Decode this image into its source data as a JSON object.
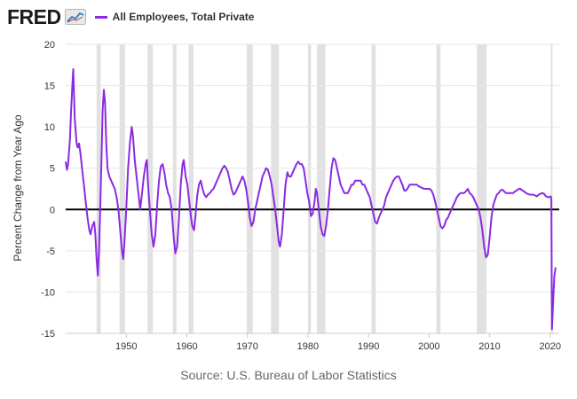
{
  "header": {
    "logo_text": "FRED",
    "logo_icon": "line-chart-icon",
    "legend_label": "All Employees, Total Private",
    "series_color": "#8a2be2"
  },
  "source_text": "Source: U.S. Bureau of Labor Statistics",
  "chart_data": {
    "type": "line",
    "title": "",
    "xlabel": "",
    "ylabel": "Percent Change from Year Ago",
    "xlim": [
      1940.0,
      2021.5
    ],
    "ylim": [
      -15,
      20
    ],
    "yticks": [
      -15,
      -10,
      -5,
      0,
      5,
      10,
      15,
      20
    ],
    "xticks": [
      1950,
      1960,
      1970,
      1980,
      1990,
      2000,
      2010,
      2020
    ],
    "grid": "horizontal",
    "zero_line": true,
    "recessions": [
      [
        1945.1,
        1945.8
      ],
      [
        1948.9,
        1949.8
      ],
      [
        1953.5,
        1954.4
      ],
      [
        1957.7,
        1958.3
      ],
      [
        1960.3,
        1961.1
      ],
      [
        1969.9,
        1970.9
      ],
      [
        1973.9,
        1975.2
      ],
      [
        1980.0,
        1980.5
      ],
      [
        1981.5,
        1982.9
      ],
      [
        1990.5,
        1991.2
      ],
      [
        2001.2,
        2001.9
      ],
      [
        2007.9,
        2009.5
      ],
      [
        2020.1,
        2020.4
      ]
    ],
    "series": [
      {
        "name": "All Employees, Total Private",
        "color": "#8a2be2",
        "points": [
          [
            1940.0,
            5.8
          ],
          [
            1940.2,
            4.8
          ],
          [
            1940.4,
            5.5
          ],
          [
            1940.7,
            8.5
          ],
          [
            1940.9,
            12.0
          ],
          [
            1941.1,
            15.0
          ],
          [
            1941.25,
            17.0
          ],
          [
            1941.5,
            11.0
          ],
          [
            1941.8,
            8.0
          ],
          [
            1942.0,
            7.5
          ],
          [
            1942.2,
            8.0
          ],
          [
            1942.4,
            7.0
          ],
          [
            1942.7,
            5.0
          ],
          [
            1943.0,
            3.0
          ],
          [
            1943.3,
            1.0
          ],
          [
            1943.6,
            -1.0
          ],
          [
            1943.9,
            -2.5
          ],
          [
            1944.1,
            -3.0
          ],
          [
            1944.4,
            -2.0
          ],
          [
            1944.7,
            -1.5
          ],
          [
            1944.9,
            -3.0
          ],
          [
            1945.1,
            -6.0
          ],
          [
            1945.3,
            -8.0
          ],
          [
            1945.5,
            -5.0
          ],
          [
            1945.7,
            0.0
          ],
          [
            1945.9,
            6.0
          ],
          [
            1946.1,
            12.0
          ],
          [
            1946.3,
            14.5
          ],
          [
            1946.5,
            13.0
          ],
          [
            1946.7,
            8.0
          ],
          [
            1946.9,
            5.0
          ],
          [
            1947.2,
            4.0
          ],
          [
            1947.5,
            3.5
          ],
          [
            1947.8,
            3.0
          ],
          [
            1948.1,
            2.5
          ],
          [
            1948.4,
            1.5
          ],
          [
            1948.7,
            0.0
          ],
          [
            1949.0,
            -2.5
          ],
          [
            1949.3,
            -5.0
          ],
          [
            1949.5,
            -6.0
          ],
          [
            1949.7,
            -4.0
          ],
          [
            1950.0,
            0.0
          ],
          [
            1950.3,
            5.0
          ],
          [
            1950.6,
            8.0
          ],
          [
            1950.9,
            10.0
          ],
          [
            1951.1,
            9.0
          ],
          [
            1951.4,
            6.0
          ],
          [
            1951.7,
            4.0
          ],
          [
            1952.0,
            2.0
          ],
          [
            1952.3,
            0.0
          ],
          [
            1952.6,
            2.0
          ],
          [
            1952.9,
            4.0
          ],
          [
            1953.2,
            5.5
          ],
          [
            1953.4,
            6.0
          ],
          [
            1953.6,
            3.0
          ],
          [
            1953.9,
            0.0
          ],
          [
            1954.2,
            -3.0
          ],
          [
            1954.5,
            -4.5
          ],
          [
            1954.8,
            -3.0
          ],
          [
            1955.1,
            0.5
          ],
          [
            1955.4,
            3.5
          ],
          [
            1955.7,
            5.2
          ],
          [
            1956.0,
            5.5
          ],
          [
            1956.3,
            4.5
          ],
          [
            1956.6,
            3.0
          ],
          [
            1956.9,
            2.0
          ],
          [
            1957.2,
            1.5
          ],
          [
            1957.5,
            0.0
          ],
          [
            1957.8,
            -3.0
          ],
          [
            1958.1,
            -5.3
          ],
          [
            1958.4,
            -4.5
          ],
          [
            1958.7,
            -1.0
          ],
          [
            1959.0,
            3.0
          ],
          [
            1959.3,
            5.5
          ],
          [
            1959.5,
            6.0
          ],
          [
            1959.8,
            4.0
          ],
          [
            1960.1,
            3.0
          ],
          [
            1960.4,
            1.0
          ],
          [
            1960.7,
            -1.0
          ],
          [
            1960.9,
            -2.0
          ],
          [
            1961.2,
            -2.5
          ],
          [
            1961.4,
            -1.0
          ],
          [
            1961.7,
            1.5
          ],
          [
            1962.0,
            3.0
          ],
          [
            1962.3,
            3.5
          ],
          [
            1962.6,
            2.5
          ],
          [
            1962.9,
            1.8
          ],
          [
            1963.2,
            1.5
          ],
          [
            1963.5,
            1.8
          ],
          [
            1963.8,
            2.0
          ],
          [
            1964.1,
            2.3
          ],
          [
            1964.4,
            2.5
          ],
          [
            1964.7,
            3.0
          ],
          [
            1965.0,
            3.5
          ],
          [
            1965.3,
            4.0
          ],
          [
            1965.6,
            4.5
          ],
          [
            1965.9,
            5.0
          ],
          [
            1966.2,
            5.3
          ],
          [
            1966.5,
            5.0
          ],
          [
            1966.8,
            4.5
          ],
          [
            1967.1,
            3.5
          ],
          [
            1967.4,
            2.5
          ],
          [
            1967.7,
            1.8
          ],
          [
            1968.0,
            2.0
          ],
          [
            1968.3,
            2.5
          ],
          [
            1968.6,
            3.0
          ],
          [
            1968.9,
            3.5
          ],
          [
            1969.2,
            4.0
          ],
          [
            1969.5,
            3.5
          ],
          [
            1969.8,
            2.5
          ],
          [
            1970.1,
            1.0
          ],
          [
            1970.4,
            -1.0
          ],
          [
            1970.7,
            -2.0
          ],
          [
            1971.0,
            -1.5
          ],
          [
            1971.3,
            0.0
          ],
          [
            1971.6,
            1.0
          ],
          [
            1971.9,
            2.0
          ],
          [
            1972.2,
            3.0
          ],
          [
            1972.5,
            4.0
          ],
          [
            1972.8,
            4.5
          ],
          [
            1973.1,
            5.0
          ],
          [
            1973.4,
            4.8
          ],
          [
            1973.7,
            4.0
          ],
          [
            1974.0,
            3.0
          ],
          [
            1974.3,
            1.5
          ],
          [
            1974.6,
            0.0
          ],
          [
            1974.9,
            -2.0
          ],
          [
            1975.2,
            -4.0
          ],
          [
            1975.4,
            -4.5
          ],
          [
            1975.7,
            -3.0
          ],
          [
            1976.0,
            0.0
          ],
          [
            1976.3,
            3.0
          ],
          [
            1976.6,
            4.5
          ],
          [
            1976.9,
            4.0
          ],
          [
            1977.2,
            4.0
          ],
          [
            1977.5,
            4.5
          ],
          [
            1977.8,
            5.0
          ],
          [
            1978.1,
            5.5
          ],
          [
            1978.4,
            5.8
          ],
          [
            1978.7,
            5.5
          ],
          [
            1979.0,
            5.5
          ],
          [
            1979.3,
            5.0
          ],
          [
            1979.6,
            3.5
          ],
          [
            1979.9,
            2.0
          ],
          [
            1980.2,
            1.0
          ],
          [
            1980.5,
            -0.8
          ],
          [
            1980.8,
            -0.5
          ],
          [
            1981.1,
            1.0
          ],
          [
            1981.3,
            2.5
          ],
          [
            1981.5,
            2.0
          ],
          [
            1981.8,
            0.0
          ],
          [
            1982.1,
            -2.0
          ],
          [
            1982.4,
            -3.0
          ],
          [
            1982.7,
            -3.2
          ],
          [
            1983.0,
            -2.0
          ],
          [
            1983.3,
            0.0
          ],
          [
            1983.6,
            2.5
          ],
          [
            1983.9,
            5.0
          ],
          [
            1984.2,
            6.2
          ],
          [
            1984.5,
            6.0
          ],
          [
            1984.8,
            5.0
          ],
          [
            1985.1,
            4.0
          ],
          [
            1985.4,
            3.0
          ],
          [
            1985.7,
            2.5
          ],
          [
            1986.0,
            2.0
          ],
          [
            1986.3,
            2.0
          ],
          [
            1986.6,
            2.0
          ],
          [
            1986.9,
            2.5
          ],
          [
            1987.2,
            3.0
          ],
          [
            1987.5,
            3.0
          ],
          [
            1987.8,
            3.5
          ],
          [
            1988.1,
            3.5
          ],
          [
            1988.4,
            3.5
          ],
          [
            1988.7,
            3.5
          ],
          [
            1989.0,
            3.0
          ],
          [
            1989.3,
            3.0
          ],
          [
            1989.6,
            2.5
          ],
          [
            1989.9,
            2.0
          ],
          [
            1990.2,
            1.5
          ],
          [
            1990.5,
            0.5
          ],
          [
            1990.8,
            -0.5
          ],
          [
            1991.1,
            -1.5
          ],
          [
            1991.4,
            -1.7
          ],
          [
            1991.7,
            -1.0
          ],
          [
            1992.0,
            -0.5
          ],
          [
            1992.3,
            0.0
          ],
          [
            1992.6,
            0.5
          ],
          [
            1992.9,
            1.5
          ],
          [
            1993.2,
            2.0
          ],
          [
            1993.5,
            2.5
          ],
          [
            1993.8,
            3.0
          ],
          [
            1994.1,
            3.5
          ],
          [
            1994.4,
            3.8
          ],
          [
            1994.7,
            4.0
          ],
          [
            1995.0,
            4.0
          ],
          [
            1995.3,
            3.5
          ],
          [
            1995.6,
            3.0
          ],
          [
            1995.9,
            2.3
          ],
          [
            1996.2,
            2.3
          ],
          [
            1996.5,
            2.6
          ],
          [
            1996.8,
            3.0
          ],
          [
            1997.1,
            3.0
          ],
          [
            1997.4,
            3.0
          ],
          [
            1997.7,
            3.0
          ],
          [
            1998.0,
            3.0
          ],
          [
            1998.3,
            2.8
          ],
          [
            1998.6,
            2.7
          ],
          [
            1998.9,
            2.6
          ],
          [
            1999.2,
            2.5
          ],
          [
            1999.5,
            2.5
          ],
          [
            1999.8,
            2.5
          ],
          [
            2000.1,
            2.5
          ],
          [
            2000.4,
            2.3
          ],
          [
            2000.7,
            1.8
          ],
          [
            2001.0,
            1.0
          ],
          [
            2001.3,
            0.0
          ],
          [
            2001.6,
            -1.0
          ],
          [
            2001.9,
            -2.0
          ],
          [
            2002.2,
            -2.3
          ],
          [
            2002.5,
            -2.0
          ],
          [
            2002.8,
            -1.3
          ],
          [
            2003.1,
            -1.0
          ],
          [
            2003.4,
            -0.5
          ],
          [
            2003.7,
            0.0
          ],
          [
            2004.0,
            0.5
          ],
          [
            2004.3,
            1.0
          ],
          [
            2004.6,
            1.5
          ],
          [
            2004.9,
            1.8
          ],
          [
            2005.2,
            2.0
          ],
          [
            2005.5,
            2.0
          ],
          [
            2005.8,
            2.0
          ],
          [
            2006.1,
            2.2
          ],
          [
            2006.4,
            2.5
          ],
          [
            2006.7,
            2.0
          ],
          [
            2007.0,
            1.8
          ],
          [
            2007.3,
            1.5
          ],
          [
            2007.6,
            1.0
          ],
          [
            2007.9,
            0.5
          ],
          [
            2008.2,
            0.0
          ],
          [
            2008.5,
            -1.0
          ],
          [
            2008.8,
            -2.5
          ],
          [
            2009.1,
            -4.5
          ],
          [
            2009.4,
            -5.8
          ],
          [
            2009.7,
            -5.5
          ],
          [
            2010.0,
            -3.5
          ],
          [
            2010.3,
            -1.0
          ],
          [
            2010.6,
            0.5
          ],
          [
            2010.9,
            1.2
          ],
          [
            2011.2,
            1.8
          ],
          [
            2011.5,
            2.0
          ],
          [
            2011.8,
            2.3
          ],
          [
            2012.1,
            2.4
          ],
          [
            2012.4,
            2.2
          ],
          [
            2012.7,
            2.0
          ],
          [
            2013.0,
            2.0
          ],
          [
            2013.3,
            2.0
          ],
          [
            2013.6,
            2.0
          ],
          [
            2013.9,
            2.0
          ],
          [
            2014.2,
            2.2
          ],
          [
            2014.5,
            2.3
          ],
          [
            2014.8,
            2.5
          ],
          [
            2015.1,
            2.5
          ],
          [
            2015.4,
            2.3
          ],
          [
            2015.7,
            2.2
          ],
          [
            2016.0,
            2.0
          ],
          [
            2016.3,
            1.9
          ],
          [
            2016.6,
            1.8
          ],
          [
            2016.9,
            1.8
          ],
          [
            2017.2,
            1.8
          ],
          [
            2017.5,
            1.7
          ],
          [
            2017.8,
            1.6
          ],
          [
            2018.1,
            1.8
          ],
          [
            2018.4,
            1.9
          ],
          [
            2018.7,
            2.0
          ],
          [
            2019.0,
            1.9
          ],
          [
            2019.3,
            1.6
          ],
          [
            2019.6,
            1.5
          ],
          [
            2019.9,
            1.5
          ],
          [
            2020.1,
            1.6
          ],
          [
            2020.2,
            1.2
          ],
          [
            2020.3,
            -14.5
          ],
          [
            2020.5,
            -11.0
          ],
          [
            2020.7,
            -8.0
          ],
          [
            2020.9,
            -7.0
          ]
        ]
      }
    ]
  }
}
